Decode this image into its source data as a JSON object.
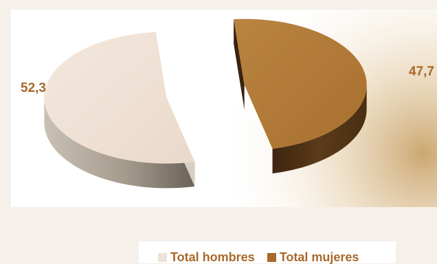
{
  "chart_data": {
    "type": "pie",
    "categories": [
      "Total hombres",
      "Total mujeres"
    ],
    "values": [
      52.3,
      47.7
    ],
    "data_labels": [
      "52,3",
      "47,7"
    ],
    "legend_position": "bottom",
    "colors": {
      "Total hombres": "#efe2d6",
      "Total mujeres": "#b47c38",
      "hombres_side": "#8a8072",
      "mujeres_side": "#4f3318",
      "label_text": "#a8682a"
    }
  },
  "legend": {
    "items": [
      {
        "label": "Total hombres",
        "color": "#efe2d6"
      },
      {
        "label": "Total mujeres",
        "color": "#a8682a"
      }
    ]
  }
}
